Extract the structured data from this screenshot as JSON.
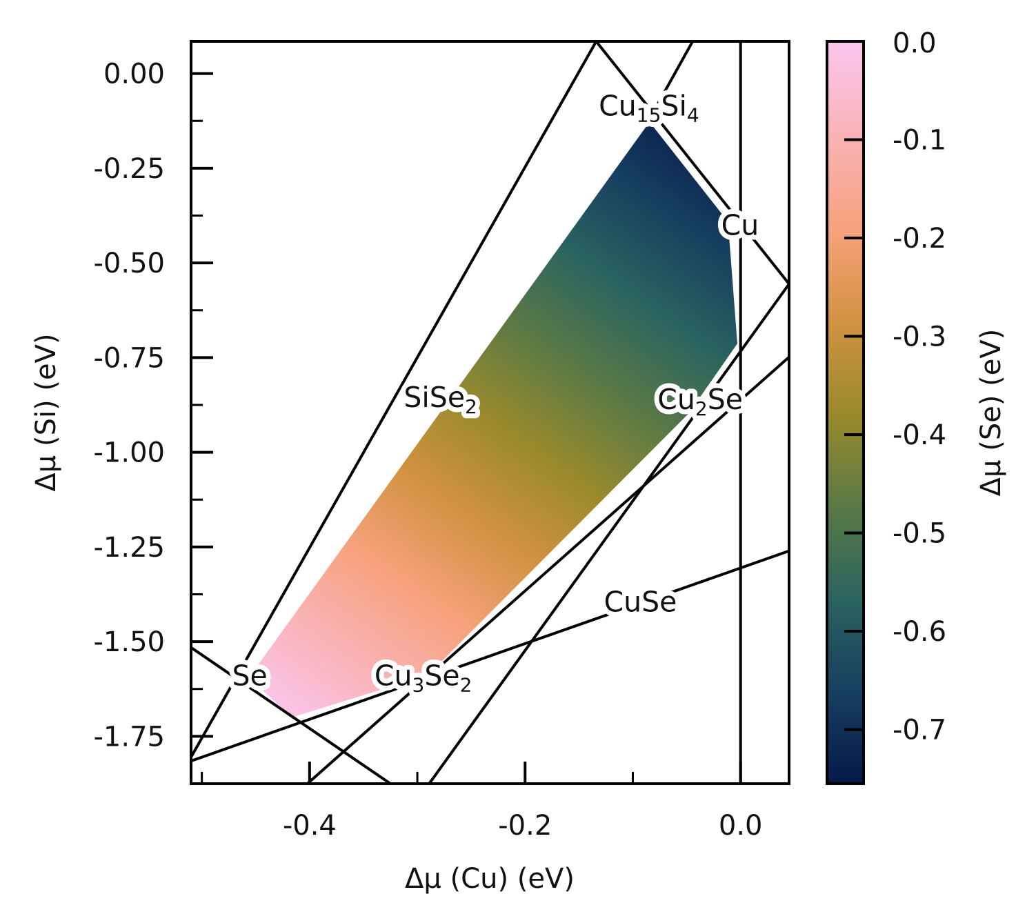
{
  "chart_data": {
    "type": "scatter",
    "title": "",
    "xlabel": "Δμ (Cu) (eV)",
    "ylabel": "Δμ (Si) (eV)",
    "xlim": [
      -0.51,
      0.045
    ],
    "ylim": [
      -1.875,
      0.085
    ],
    "xticks": [
      -0.4,
      -0.2,
      0.0
    ],
    "xtick_labels": [
      "-0.4",
      "-0.2",
      "0.0"
    ],
    "yticks": [
      0.0,
      -0.25,
      -0.5,
      -0.75,
      -1.0,
      -1.25,
      -1.5,
      -1.75
    ],
    "ytick_labels": [
      "0.00",
      "-0.25",
      "-0.50",
      "-0.75",
      "-1.00",
      "-1.25",
      "-1.50",
      "-1.75"
    ],
    "grid": false,
    "colorbar": {
      "label": "Δμ (Se) (eV)",
      "range": [
        -0.755,
        0.0
      ],
      "ticks": [
        0.0,
        -0.1,
        -0.2,
        -0.3,
        -0.4,
        -0.5,
        -0.6,
        -0.7
      ],
      "tick_labels": [
        "0.0",
        "-0.1",
        "-0.2",
        "-0.3",
        "-0.4",
        "-0.5",
        "-0.6",
        "-0.7"
      ],
      "colors": [
        "#061a4a",
        "#173f5f",
        "#2b6460",
        "#5b7a45",
        "#9b8a2c",
        "#d39242",
        "#f7a27d",
        "#f9b3b7",
        "#fbc6ee"
      ]
    },
    "stability_region": {
      "vertices": [
        [
          -0.4565,
          -1.5955
        ],
        [
          -0.0845,
          -0.1275
        ],
        [
          -0.0117,
          -0.391
        ],
        [
          -0.003,
          -0.713
        ],
        [
          -0.048,
          -0.897
        ],
        [
          -0.29,
          -1.588
        ],
        [
          -0.416,
          -1.7
        ]
      ]
    },
    "boundary_lines": [
      {
        "label": "Se",
        "points": [
          [
            -0.51,
            -1.5155
          ],
          [
            -0.325,
            -1.875
          ]
        ]
      },
      {
        "label": "SiSe2",
        "points": [
          [
            -0.51,
            -1.805
          ],
          [
            -0.134,
            0.085
          ]
        ]
      },
      {
        "label": "Cu15Si4",
        "points": [
          [
            -0.085,
            -0.122
          ],
          [
            -0.0445,
            0.085
          ]
        ]
      },
      {
        "label": "Cu",
        "points": [
          [
            -0.134,
            0.085
          ],
          [
            0.045,
            -0.5555
          ]
        ]
      },
      {
        "label": "Cu",
        "points": [
          [
            0.0,
            0.085
          ],
          [
            0.0,
            -1.875
          ]
        ]
      },
      {
        "label": "Cu3Se2",
        "points": [
          [
            -0.402,
            -1.875
          ],
          [
            0.045,
            -0.7485
          ]
        ]
      },
      {
        "label": "Cu2Se",
        "points": [
          [
            -0.289,
            -1.875
          ],
          [
            0.045,
            -0.5555
          ]
        ]
      },
      {
        "label": "CuSe",
        "points": [
          [
            -0.51,
            -1.815
          ],
          [
            0.045,
            -1.2605
          ]
        ]
      }
    ],
    "annotations": [
      {
        "base": "Cu",
        "sub": "15",
        "base2": "Si",
        "sub2": "4",
        "x": -0.085,
        "y": -0.085
      },
      {
        "base": "Cu",
        "sub": "",
        "base2": "",
        "sub2": "",
        "x": -0.0005,
        "y": -0.4
      },
      {
        "base": "SiSe",
        "sub": "2",
        "base2": "",
        "sub2": "",
        "x": -0.2785,
        "y": -0.855
      },
      {
        "base": "Cu",
        "sub": "2",
        "base2": "Se",
        "sub2": "",
        "x": -0.0375,
        "y": -0.86
      },
      {
        "base": "CuSe",
        "sub": "",
        "base2": "",
        "sub2": "",
        "x": -0.093,
        "y": -1.395
      },
      {
        "base": "Se",
        "sub": "",
        "base2": "",
        "sub2": "",
        "x": -0.4555,
        "y": -1.59
      },
      {
        "base": "Cu",
        "sub": "3",
        "base2": "Se",
        "sub2": "2",
        "x": -0.2945,
        "y": -1.59
      }
    ]
  }
}
